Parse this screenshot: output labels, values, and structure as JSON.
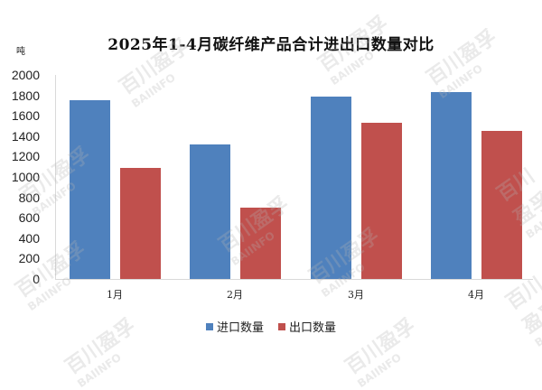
{
  "chart_data": {
    "type": "bar",
    "title": "2025年1-4月碳纤维产品合计进出口数量对比",
    "xlabel": "",
    "ylabel": "吨",
    "ylim": [
      0,
      2000
    ],
    "yticks": [
      0,
      200,
      400,
      600,
      800,
      1000,
      1200,
      1400,
      1600,
      1800,
      2000
    ],
    "grid": false,
    "legend_position": "bottom",
    "categories": [
      "1月",
      "2月",
      "3月",
      "4月"
    ],
    "series": [
      {
        "name": "进口数量",
        "color": "#4f81bd",
        "values": [
          1750,
          1320,
          1790,
          1830
        ]
      },
      {
        "name": "出口数量",
        "color": "#c0504d",
        "values": [
          1090,
          700,
          1530,
          1450
        ]
      }
    ]
  },
  "title": "2025年1-4月碳纤维产品合计进出口数量对比",
  "unit": "吨",
  "yticks": [
    "2000",
    "1800",
    "1600",
    "1400",
    "1200",
    "1000",
    "800",
    "600",
    "400",
    "200",
    "0"
  ],
  "categories": [
    "1月",
    "2月",
    "3月",
    "4月"
  ],
  "legend": [
    {
      "label": "进口数量",
      "color": "#4f81bd"
    },
    {
      "label": "出口数量",
      "color": "#c0504d"
    }
  ],
  "watermark": {
    "cn": "百川盈孚",
    "en": "BAIINFO"
  }
}
